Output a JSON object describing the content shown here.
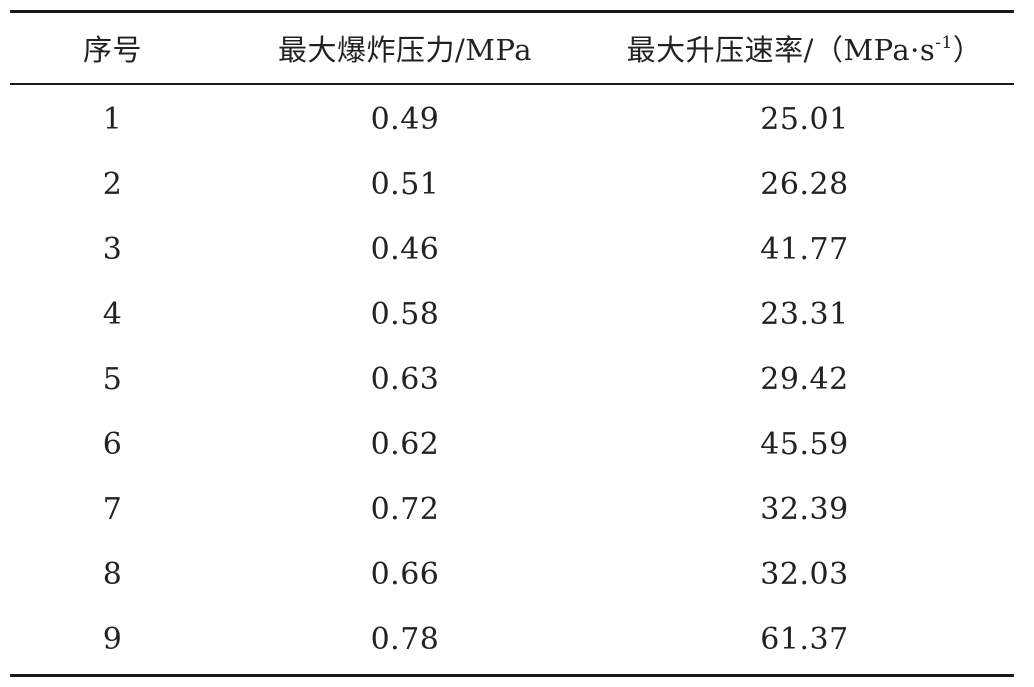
{
  "table": {
    "headers": {
      "index": "序号",
      "pressure": "最大爆炸压力/MPa",
      "rate_main": "最大升压速率/（MPa·s",
      "rate_sup": "-1",
      "rate_close": "）"
    },
    "rows": [
      {
        "index": "1",
        "pressure": "0.49",
        "rate": "25.01"
      },
      {
        "index": "2",
        "pressure": "0.51",
        "rate": "26.28"
      },
      {
        "index": "3",
        "pressure": "0.46",
        "rate": "41.77"
      },
      {
        "index": "4",
        "pressure": "0.58",
        "rate": "23.31"
      },
      {
        "index": "5",
        "pressure": "0.63",
        "rate": "29.42"
      },
      {
        "index": "6",
        "pressure": "0.62",
        "rate": "45.59"
      },
      {
        "index": "7",
        "pressure": "0.72",
        "rate": "32.39"
      },
      {
        "index": "8",
        "pressure": "0.66",
        "rate": "32.03"
      },
      {
        "index": "9",
        "pressure": "0.78",
        "rate": "61.37"
      }
    ]
  }
}
